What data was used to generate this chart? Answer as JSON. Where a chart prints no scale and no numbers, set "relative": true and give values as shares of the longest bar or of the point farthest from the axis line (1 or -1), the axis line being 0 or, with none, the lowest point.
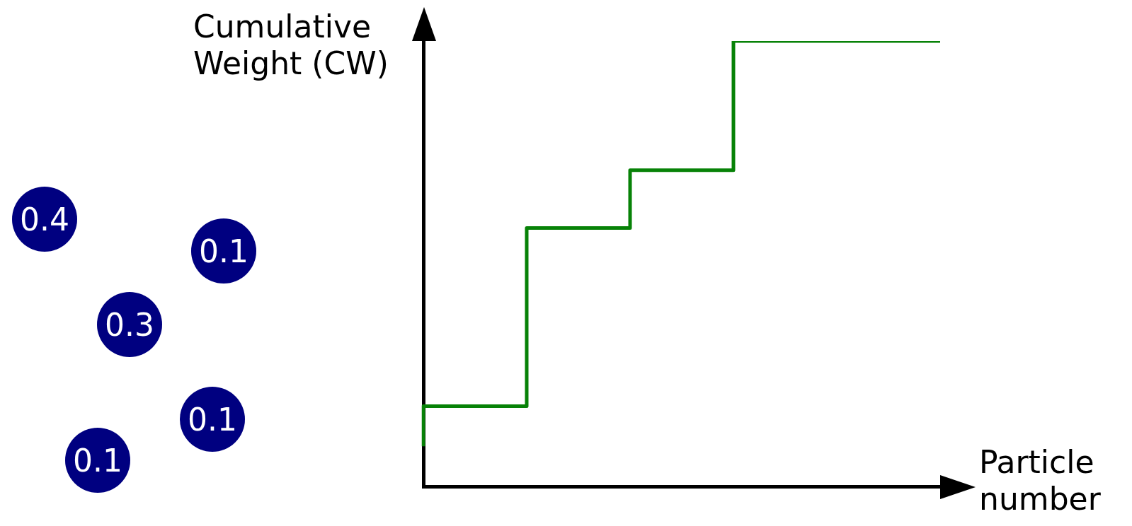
{
  "chart_data": {
    "type": "step",
    "relative": true,
    "ylabel": "Cumulative Weight (CW)",
    "xlabel": "Particle number",
    "categories": [
      null,
      null,
      null,
      null,
      null,
      null
    ],
    "values": [
      0.09,
      0.18,
      0.58,
      0.71,
      1,
      1
    ],
    "color": "#078207",
    "annotations": [
      "0.4",
      "0.1",
      "0.3",
      "0.1",
      "0.1"
    ]
  }
}
